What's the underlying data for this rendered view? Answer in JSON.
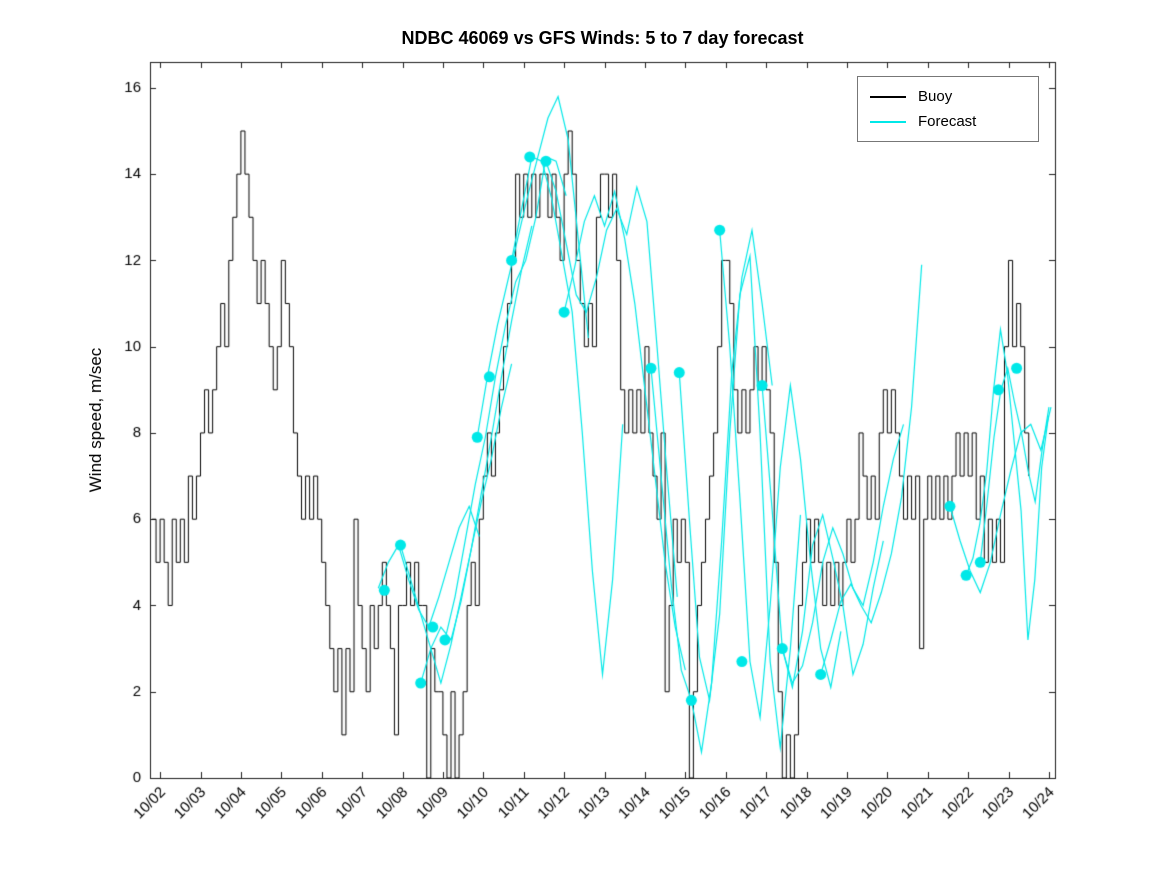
{
  "title": "NDBC 46069 vs GFS Winds: 5 to 7 day forecast",
  "chart_data": {
    "type": "line",
    "title": "NDBC 46069 vs GFS Winds: 5 to 7 day forecast",
    "xlabel": "",
    "ylabel": "Wind speed, m/sec",
    "ylim": [
      0,
      16.6
    ],
    "xlim": [
      1.75,
      24.15
    ],
    "grid": false,
    "yticks": [
      0,
      2,
      4,
      6,
      8,
      10,
      12,
      14,
      16
    ],
    "xtick_days": [
      2,
      3,
      4,
      5,
      6,
      7,
      8,
      9,
      10,
      11,
      12,
      13,
      14,
      15,
      16,
      17,
      18,
      19,
      20,
      21,
      22,
      23,
      24
    ],
    "xtick_labels": [
      "10/02",
      "10/03",
      "10/04",
      "10/05",
      "10/06",
      "10/07",
      "10/08",
      "10/09",
      "10/10",
      "10/11",
      "10/12",
      "10/13",
      "10/14",
      "10/15",
      "10/16",
      "10/17",
      "10/18",
      "10/19",
      "10/20",
      "10/21",
      "10/22",
      "10/23",
      "10/24"
    ],
    "legend": {
      "position": "top-right",
      "entries": [
        {
          "label": "Buoy",
          "color": "#000000"
        },
        {
          "label": "Forecast",
          "color": "#00e8e8"
        }
      ]
    },
    "series": {
      "buoy": {
        "name": "Buoy",
        "color": "#000000",
        "x0": 1.8,
        "dx": 0.1,
        "y": [
          6,
          5,
          6,
          5,
          4,
          6,
          5,
          6,
          5,
          7,
          6,
          7,
          8,
          9,
          8,
          9,
          10,
          11,
          10,
          12,
          13,
          14,
          15,
          14,
          13,
          12,
          11,
          12,
          11,
          10,
          9,
          10,
          12,
          11,
          10,
          8,
          7,
          6,
          7,
          6,
          7,
          6,
          5,
          4,
          3,
          2,
          3,
          1,
          3,
          2,
          6,
          4,
          3,
          2,
          4,
          3,
          4,
          5,
          4,
          3,
          1,
          4,
          4,
          5,
          4,
          5,
          4,
          4,
          0,
          3,
          2,
          2,
          1,
          0,
          2,
          0,
          1,
          2,
          4,
          5,
          4,
          6,
          7,
          8,
          7,
          8,
          9,
          10,
          11,
          12,
          14,
          13,
          14,
          13,
          14,
          13,
          14,
          14,
          13,
          14,
          13,
          12,
          14,
          15,
          14,
          12,
          11,
          10,
          11,
          10,
          13,
          14,
          14,
          13,
          14,
          12,
          9,
          8,
          9,
          8,
          9,
          8,
          10,
          8,
          7,
          6,
          8,
          2,
          4,
          6,
          5,
          6,
          5,
          0,
          2,
          4,
          5,
          6,
          7,
          8,
          10,
          12,
          12,
          11,
          9,
          8,
          9,
          8,
          9,
          10,
          9,
          10,
          9,
          8,
          5,
          2,
          0,
          1,
          0,
          1,
          4,
          5,
          6,
          5,
          6,
          5,
          4,
          5,
          4,
          5,
          4,
          5,
          6,
          5,
          6,
          8,
          7,
          6,
          7,
          6,
          8,
          9,
          8,
          9,
          8,
          7,
          6,
          7,
          6,
          7,
          3,
          6,
          7,
          6,
          7,
          6,
          7,
          6,
          7,
          8,
          7,
          8,
          7,
          8,
          6,
          7,
          5,
          6,
          5,
          6,
          5,
          10,
          12,
          10,
          11,
          10,
          8,
          7
        ]
      },
      "forecast_runs": [
        {
          "x0": 7.4,
          "dx": 0.25,
          "y": [
            4.4,
            5.0,
            5.4,
            4.6,
            3.9,
            3.5,
            4.2,
            5.0,
            5.8,
            6.3,
            5.6
          ]
        },
        {
          "x0": 7.95,
          "dx": 0.25,
          "y": [
            5.4,
            4.6,
            3.8,
            3.0,
            2.2,
            3.1,
            4.2,
            5.3,
            6.4,
            7.4,
            8.6,
            9.6
          ]
        },
        {
          "x0": 8.45,
          "dx": 0.25,
          "y": [
            2.2,
            3.0,
            3.5,
            3.2,
            4.1,
            5.3,
            6.6,
            7.9,
            9.3,
            10.6,
            11.8,
            12.8
          ]
        },
        {
          "x0": 9.05,
          "dx": 0.25,
          "y": [
            3.2,
            4.2,
            5.5,
            6.8,
            7.9,
            9.3,
            10.5,
            11.5,
            12.0,
            13.0,
            14.4,
            14.3,
            13.5
          ]
        },
        {
          "x0": 9.85,
          "dx": 0.25,
          "y": [
            7.9,
            9.3,
            10.5,
            11.5,
            12.5,
            13.5,
            14.4,
            15.3,
            15.8,
            14.8,
            12.5,
            10.2
          ]
        },
        {
          "x0": 10.7,
          "dx": 0.25,
          "y": [
            12.0,
            13.2,
            14.4,
            14.3,
            13.4,
            12.1,
            10.8,
            8.0,
            4.8,
            2.4,
            4.6,
            8.2
          ]
        },
        {
          "x0": 11.55,
          "dx": 0.25,
          "y": [
            14.3,
            13.6,
            12.4,
            11.2,
            10.8,
            11.6,
            12.7,
            13.2,
            12.6,
            13.7,
            12.9,
            10.0,
            7.0,
            4.2
          ]
        },
        {
          "x0": 12.0,
          "dx": 0.25,
          "y": [
            10.8,
            11.8,
            12.9,
            13.5,
            12.8,
            13.6,
            12.5,
            11.0,
            9.0,
            7.0,
            5.0,
            3.5,
            2.5
          ]
        },
        {
          "x0": 14.15,
          "dx": 0.25,
          "y": [
            9.5,
            7.0,
            4.5,
            2.5,
            1.8,
            0.6,
            2.2,
            5.5,
            9.4,
            11.6,
            12.7,
            11.0,
            9.1
          ]
        },
        {
          "x0": 14.85,
          "dx": 0.25,
          "y": [
            9.4,
            6.0,
            2.8,
            1.8,
            3.8,
            8.0,
            11.2,
            12.1,
            8.0,
            2.7,
            0.7,
            3.0,
            6.1
          ]
        },
        {
          "x0": 15.85,
          "dx": 0.25,
          "y": [
            12.7,
            10.0,
            6.5,
            2.7,
            1.4,
            4.0,
            7.2,
            9.1,
            7.4,
            5.0,
            3.0,
            2.1,
            3.4
          ]
        },
        {
          "x0": 16.9,
          "dx": 0.25,
          "y": [
            9.1,
            6.2,
            3.0,
            2.1,
            3.4,
            5.4,
            6.1,
            5.1,
            4.0,
            2.4,
            3.1,
            4.4,
            5.5
          ]
        },
        {
          "x0": 17.4,
          "dx": 0.25,
          "y": [
            3.0,
            2.2,
            2.6,
            3.6,
            5.0,
            5.8,
            5.2,
            4.4,
            4.0,
            5.0,
            6.3,
            7.4,
            8.2
          ]
        },
        {
          "x0": 18.35,
          "dx": 0.25,
          "y": [
            2.4,
            3.2,
            4.1,
            4.5,
            4.0,
            3.6,
            4.3,
            5.2,
            6.5,
            8.6,
            11.9
          ]
        },
        {
          "x0": 21.55,
          "dx": 0.25,
          "y": [
            6.3,
            5.5,
            4.8,
            4.3,
            5.0,
            6.1,
            7.1,
            8.0,
            8.2,
            7.6,
            8.6
          ]
        },
        {
          "x0": 21.95,
          "dx": 0.17,
          "y": [
            4.7,
            5.1,
            5.9,
            7.1,
            9.0,
            10.4,
            9.4,
            7.8,
            6.2,
            3.2,
            4.6,
            7.2,
            8.4
          ]
        },
        {
          "x0": 22.3,
          "dx": 0.17,
          "y": [
            5.0,
            6.4,
            7.9,
            9.0,
            9.5,
            8.7,
            8.0,
            7.1,
            6.4,
            7.6,
            8.6
          ]
        }
      ],
      "forecast_markers": {
        "color": "#00e8e8",
        "points": [
          [
            7.55,
            4.35
          ],
          [
            7.95,
            5.4
          ],
          [
            8.45,
            2.2
          ],
          [
            8.75,
            3.5
          ],
          [
            9.05,
            3.2
          ],
          [
            9.85,
            7.9
          ],
          [
            10.15,
            9.3
          ],
          [
            10.7,
            12.0
          ],
          [
            11.15,
            14.4
          ],
          [
            11.55,
            14.3
          ],
          [
            12.0,
            10.8
          ],
          [
            14.15,
            9.5
          ],
          [
            14.85,
            9.4
          ],
          [
            15.15,
            1.8
          ],
          [
            15.85,
            12.7
          ],
          [
            16.4,
            2.7
          ],
          [
            16.9,
            9.1
          ],
          [
            17.4,
            3.0
          ],
          [
            18.35,
            2.4
          ],
          [
            21.55,
            6.3
          ],
          [
            21.95,
            4.7
          ],
          [
            22.3,
            5.0
          ],
          [
            22.75,
            9.0
          ],
          [
            23.2,
            9.5
          ]
        ]
      }
    }
  }
}
